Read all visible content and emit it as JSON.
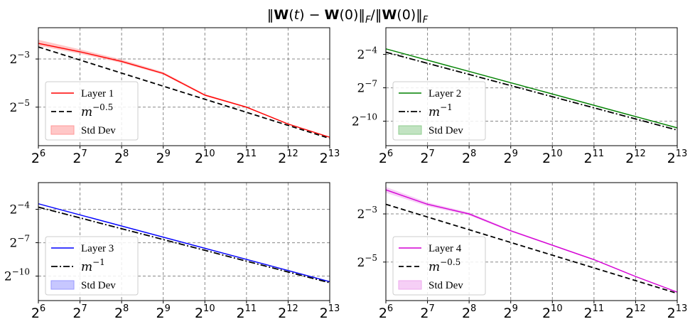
{
  "figure": {
    "suptitle": "‖W(t) − W(0)‖F/‖W(0)‖F"
  },
  "chart_data": [
    {
      "type": "line",
      "panel": "Layer 1",
      "xscale": "log2",
      "yscale": "log2",
      "xlim": [
        64,
        8192
      ],
      "ylim_log2": [
        -6.6,
        -1.7
      ],
      "xticks": [
        "2^6",
        "2^7",
        "2^8",
        "2^9",
        "2^10",
        "2^11",
        "2^12",
        "2^13"
      ],
      "yticks": [
        "2^-3",
        "2^-5"
      ],
      "grid": true,
      "legend_position": "lower-left",
      "series": [
        {
          "name": "Layer 1",
          "color": "#ff0000",
          "style": "solid",
          "x": [
            64,
            128,
            256,
            512,
            1024,
            2048,
            4096,
            8192
          ],
          "log2_y": [
            -2.35,
            -2.7,
            -3.1,
            -3.6,
            -4.5,
            -5.0,
            -5.7,
            -6.25
          ]
        },
        {
          "name": "m^−0.5",
          "color": "#000000",
          "style": "dashed",
          "x": [
            64,
            8192
          ],
          "log2_y": [
            -2.5,
            -6.3
          ]
        },
        {
          "name": "Std Dev",
          "color": "#ff9999",
          "style": "band",
          "x": [
            64,
            128,
            256,
            512,
            1024,
            2048,
            4096,
            8192
          ],
          "log2_y_low": [
            -2.45,
            -2.78,
            -3.16,
            -3.65,
            -4.54,
            -5.03,
            -5.72,
            -6.27
          ],
          "log2_y_high": [
            -2.2,
            -2.6,
            -3.02,
            -3.54,
            -4.46,
            -4.97,
            -5.68,
            -6.23
          ]
        }
      ]
    },
    {
      "type": "line",
      "panel": "Layer 2",
      "xscale": "log2",
      "yscale": "log2",
      "xlim": [
        64,
        8192
      ],
      "ylim_log2": [
        -12.2,
        -1.6
      ],
      "xticks": [
        "2^6",
        "2^7",
        "2^8",
        "2^9",
        "2^10",
        "2^11",
        "2^12",
        "2^13"
      ],
      "yticks": [
        "2^-4",
        "2^-7",
        "2^-10"
      ],
      "grid": true,
      "legend_position": "lower-left",
      "series": [
        {
          "name": "Layer 2",
          "color": "#008000",
          "style": "solid",
          "x": [
            64,
            8192
          ],
          "log2_y": [
            -3.5,
            -10.6
          ]
        },
        {
          "name": "m^−1",
          "color": "#000000",
          "style": "dashdot",
          "x": [
            64,
            8192
          ],
          "log2_y": [
            -3.8,
            -10.8
          ]
        },
        {
          "name": "Std Dev",
          "color": "#8fcc8f",
          "style": "band",
          "x": [
            64,
            8192
          ],
          "log2_y_low": [
            -3.55,
            -10.65
          ],
          "log2_y_high": [
            -3.45,
            -10.55
          ]
        }
      ]
    },
    {
      "type": "line",
      "panel": "Layer 3",
      "xscale": "log2",
      "yscale": "log2",
      "xlim": [
        64,
        8192
      ],
      "ylim_log2": [
        -12.2,
        -1.6
      ],
      "xticks": [
        "2^6",
        "2^7",
        "2^8",
        "2^9",
        "2^10",
        "2^11",
        "2^12",
        "2^13"
      ],
      "yticks": [
        "2^-4",
        "2^-7",
        "2^-10"
      ],
      "grid": true,
      "legend_position": "lower-left",
      "series": [
        {
          "name": "Layer 3",
          "color": "#0000ff",
          "style": "solid",
          "x": [
            64,
            8192
          ],
          "log2_y": [
            -3.5,
            -10.5
          ]
        },
        {
          "name": "m^−1",
          "color": "#000000",
          "style": "dashdot",
          "x": [
            64,
            8192
          ],
          "log2_y": [
            -3.8,
            -10.6
          ]
        },
        {
          "name": "Std Dev",
          "color": "#9999ff",
          "style": "band",
          "x": [
            64,
            8192
          ],
          "log2_y_low": [
            -3.55,
            -10.55
          ],
          "log2_y_high": [
            -3.45,
            -10.45
          ]
        }
      ]
    },
    {
      "type": "line",
      "panel": "Layer 4",
      "xscale": "log2",
      "yscale": "log2",
      "xlim": [
        64,
        8192
      ],
      "ylim_log2": [
        -6.6,
        -1.7
      ],
      "xticks": [
        "2^6",
        "2^7",
        "2^8",
        "2^9",
        "2^10",
        "2^11",
        "2^12",
        "2^13"
      ],
      "yticks": [
        "2^-3",
        "2^-5"
      ],
      "grid": true,
      "legend_position": "lower-left",
      "series": [
        {
          "name": "Layer 4",
          "color": "#d400d4",
          "style": "solid",
          "x": [
            64,
            128,
            256,
            512,
            1024,
            2048,
            4096,
            8192
          ],
          "log2_y": [
            -2.0,
            -2.6,
            -3.0,
            -3.7,
            -4.3,
            -4.9,
            -5.6,
            -6.25
          ]
        },
        {
          "name": "m^−0.5",
          "color": "#000000",
          "style": "dashed",
          "x": [
            64,
            8192
          ],
          "log2_y": [
            -2.6,
            -6.3
          ]
        },
        {
          "name": "Std Dev",
          "color": "#eea8ee",
          "style": "band",
          "x": [
            64,
            128,
            256,
            512,
            1024,
            2048,
            4096,
            8192
          ],
          "log2_y_low": [
            -2.12,
            -2.68,
            -3.06,
            -3.74,
            -4.33,
            -4.93,
            -5.62,
            -6.27
          ],
          "log2_y_high": [
            -1.88,
            -2.52,
            -2.94,
            -3.66,
            -4.27,
            -4.87,
            -5.58,
            -6.23
          ]
        }
      ]
    }
  ]
}
